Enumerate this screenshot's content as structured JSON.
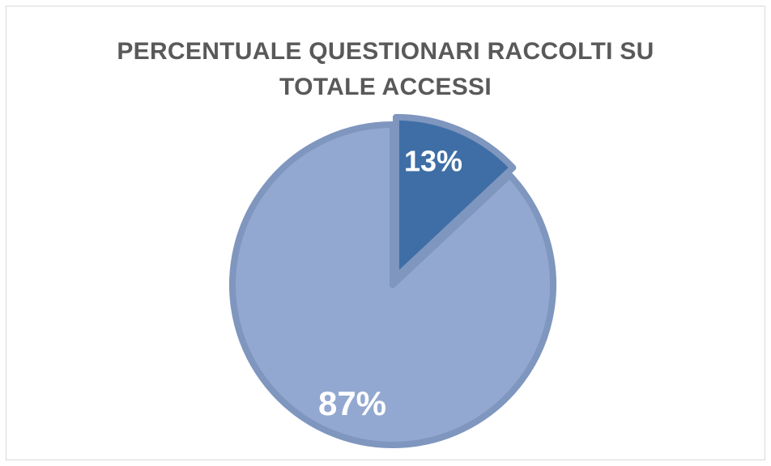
{
  "chart_data": {
    "type": "pie",
    "title_lines": [
      "PERCENTUALE QUESTIONARI RACCOLTI SU",
      "TOTALE ACCESSI"
    ],
    "slices": [
      {
        "value": 13,
        "label": "13%",
        "color": "#3f6ea6",
        "exploded": true
      },
      {
        "value": 87,
        "label": "87%",
        "color": "#93a8d0",
        "exploded": false
      }
    ],
    "legend": "none"
  },
  "colors": {
    "slice_border": "#7f96be",
    "title_text": "#595959",
    "label_text": "#ffffff"
  }
}
